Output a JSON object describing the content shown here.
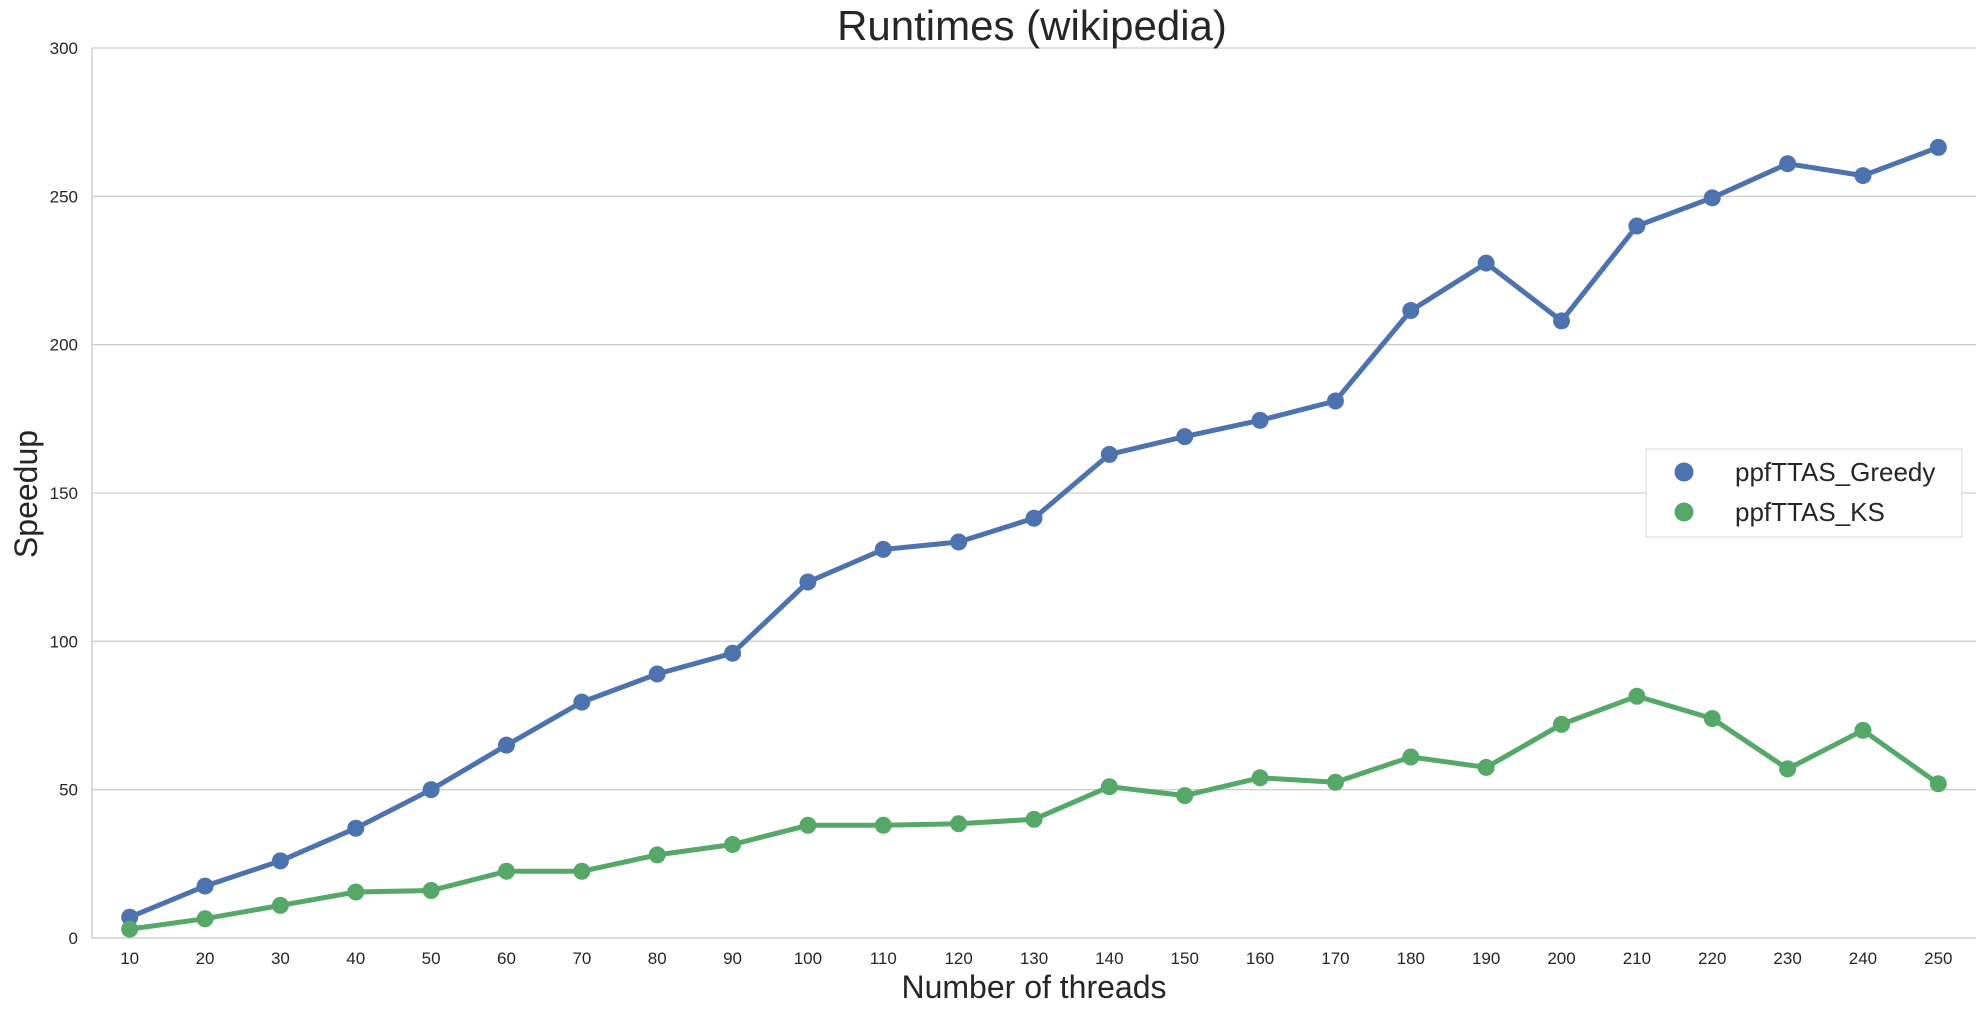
{
  "chart_data": {
    "type": "line",
    "title": "Runtimes (wikipedia)",
    "xlabel": "Number of threads",
    "ylabel": "Speedup",
    "categories": [
      "10",
      "20",
      "30",
      "40",
      "50",
      "60",
      "70",
      "80",
      "90",
      "100",
      "110",
      "120",
      "130",
      "140",
      "150",
      "160",
      "170",
      "180",
      "190",
      "200",
      "210",
      "220",
      "230",
      "240",
      "250"
    ],
    "ylim": [
      0,
      300
    ],
    "yticks": [
      0,
      50,
      100,
      150,
      200,
      250,
      300
    ],
    "grid": "horizontal",
    "legend_position": "center-right",
    "series": [
      {
        "name": "ppfTTAS_Greedy",
        "color": "#4c72b0",
        "values": [
          7,
          17.5,
          26,
          37,
          50,
          65,
          79.5,
          89,
          96,
          120,
          131,
          133.5,
          141.5,
          163,
          169,
          174.5,
          181,
          211.5,
          227.5,
          208,
          240,
          249.5,
          261,
          257,
          266.5
        ]
      },
      {
        "name": "ppfTTAS_KS",
        "color": "#55a868",
        "values": [
          3,
          6.5,
          11,
          15.5,
          16,
          22.5,
          22.5,
          28,
          31.5,
          38,
          38,
          38.5,
          40,
          51,
          48,
          54,
          52.5,
          61,
          57.5,
          72,
          81.5,
          74,
          57,
          70,
          52
        ]
      }
    ]
  }
}
